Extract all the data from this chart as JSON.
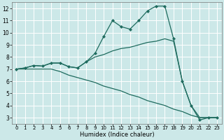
{
  "xlabel": "Humidex (Indice chaleur)",
  "bg_color": "#cce8e8",
  "grid_color": "#ffffff",
  "line_color": "#1e6b5e",
  "xlim": [
    -0.5,
    23.5
  ],
  "ylim": [
    2.5,
    12.5
  ],
  "xticks": [
    0,
    1,
    2,
    3,
    4,
    5,
    6,
    7,
    8,
    9,
    10,
    11,
    12,
    13,
    14,
    15,
    16,
    17,
    18,
    19,
    20,
    21,
    22,
    23
  ],
  "yticks": [
    3,
    4,
    5,
    6,
    7,
    8,
    9,
    10,
    11,
    12
  ],
  "series1_x": [
    0,
    1,
    2,
    3,
    4,
    5,
    6,
    7,
    8,
    9,
    10,
    11,
    12,
    13,
    14,
    15,
    16,
    17,
    18,
    19,
    20,
    21,
    22,
    23
  ],
  "series1_y": [
    7.0,
    7.1,
    7.3,
    7.25,
    7.5,
    7.5,
    7.2,
    7.1,
    7.6,
    8.3,
    9.7,
    11.0,
    10.5,
    10.3,
    11.0,
    11.8,
    12.2,
    12.2,
    9.5,
    6.0,
    4.0,
    2.8,
    3.0,
    3.0
  ],
  "series2_x": [
    0,
    1,
    2,
    3,
    4,
    5,
    6,
    7,
    8,
    9,
    10,
    11,
    12,
    13,
    14,
    15,
    16,
    17,
    18,
    19,
    20,
    21,
    22,
    23
  ],
  "series2_y": [
    7.0,
    7.1,
    7.3,
    7.25,
    7.5,
    7.5,
    7.2,
    7.1,
    7.6,
    8.0,
    8.2,
    8.5,
    8.7,
    8.8,
    9.0,
    9.2,
    9.3,
    9.5,
    9.3,
    6.0,
    4.0,
    3.0,
    3.0,
    3.0
  ],
  "series3_x": [
    0,
    1,
    2,
    3,
    4,
    5,
    6,
    7,
    8,
    9,
    10,
    11,
    12,
    13,
    14,
    15,
    16,
    17,
    18,
    19,
    20,
    21,
    22,
    23
  ],
  "series3_y": [
    7.0,
    7.0,
    7.0,
    7.0,
    7.0,
    6.8,
    6.5,
    6.3,
    6.1,
    5.9,
    5.6,
    5.4,
    5.2,
    4.9,
    4.7,
    4.4,
    4.2,
    4.0,
    3.7,
    3.5,
    3.2,
    3.0,
    3.0,
    3.0
  ],
  "xlabel_fontsize": 6.0,
  "tick_fontsize_x": 5.0,
  "tick_fontsize_y": 5.5,
  "linewidth": 0.9,
  "markersize": 2.2
}
